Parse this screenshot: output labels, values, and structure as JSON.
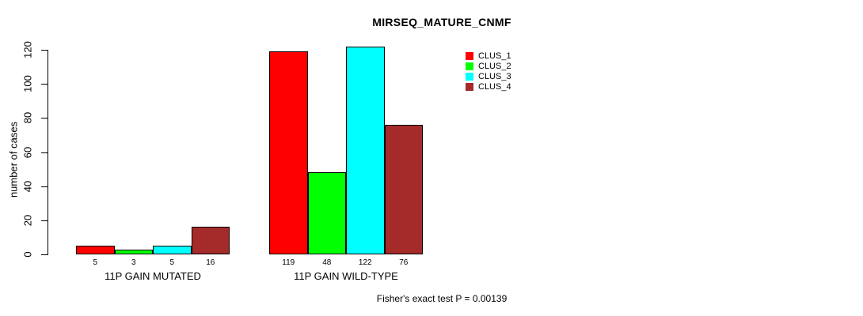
{
  "chart_data": {
    "type": "bar",
    "title": "MIRSEQ_MATURE_CNMF",
    "ylabel": "number of cases",
    "xlabel": "",
    "ylim": [
      0,
      120
    ],
    "yticks": [
      0,
      20,
      40,
      60,
      80,
      100,
      120
    ],
    "categories": [
      "11P GAIN MUTATED",
      "11P GAIN WILD-TYPE"
    ],
    "series": [
      {
        "name": "CLUS_1",
        "color": "#FF0000",
        "values": [
          5,
          119
        ]
      },
      {
        "name": "CLUS_2",
        "color": "#00FF00",
        "values": [
          3,
          48
        ]
      },
      {
        "name": "CLUS_3",
        "color": "#00FFFF",
        "values": [
          5,
          122
        ]
      },
      {
        "name": "CLUS_4",
        "color": "#A52A2A",
        "values": [
          16,
          76
        ]
      }
    ],
    "bar_value_labels_shown": true,
    "legend": {
      "position": "top-right",
      "entries": [
        "CLUS_1",
        "CLUS_2",
        "CLUS_3",
        "CLUS_4"
      ]
    },
    "annotation": "Fisher's exact test P = 0.00139",
    "grid": false,
    "axis_color": "#000000",
    "background": "#FFFFFF"
  }
}
